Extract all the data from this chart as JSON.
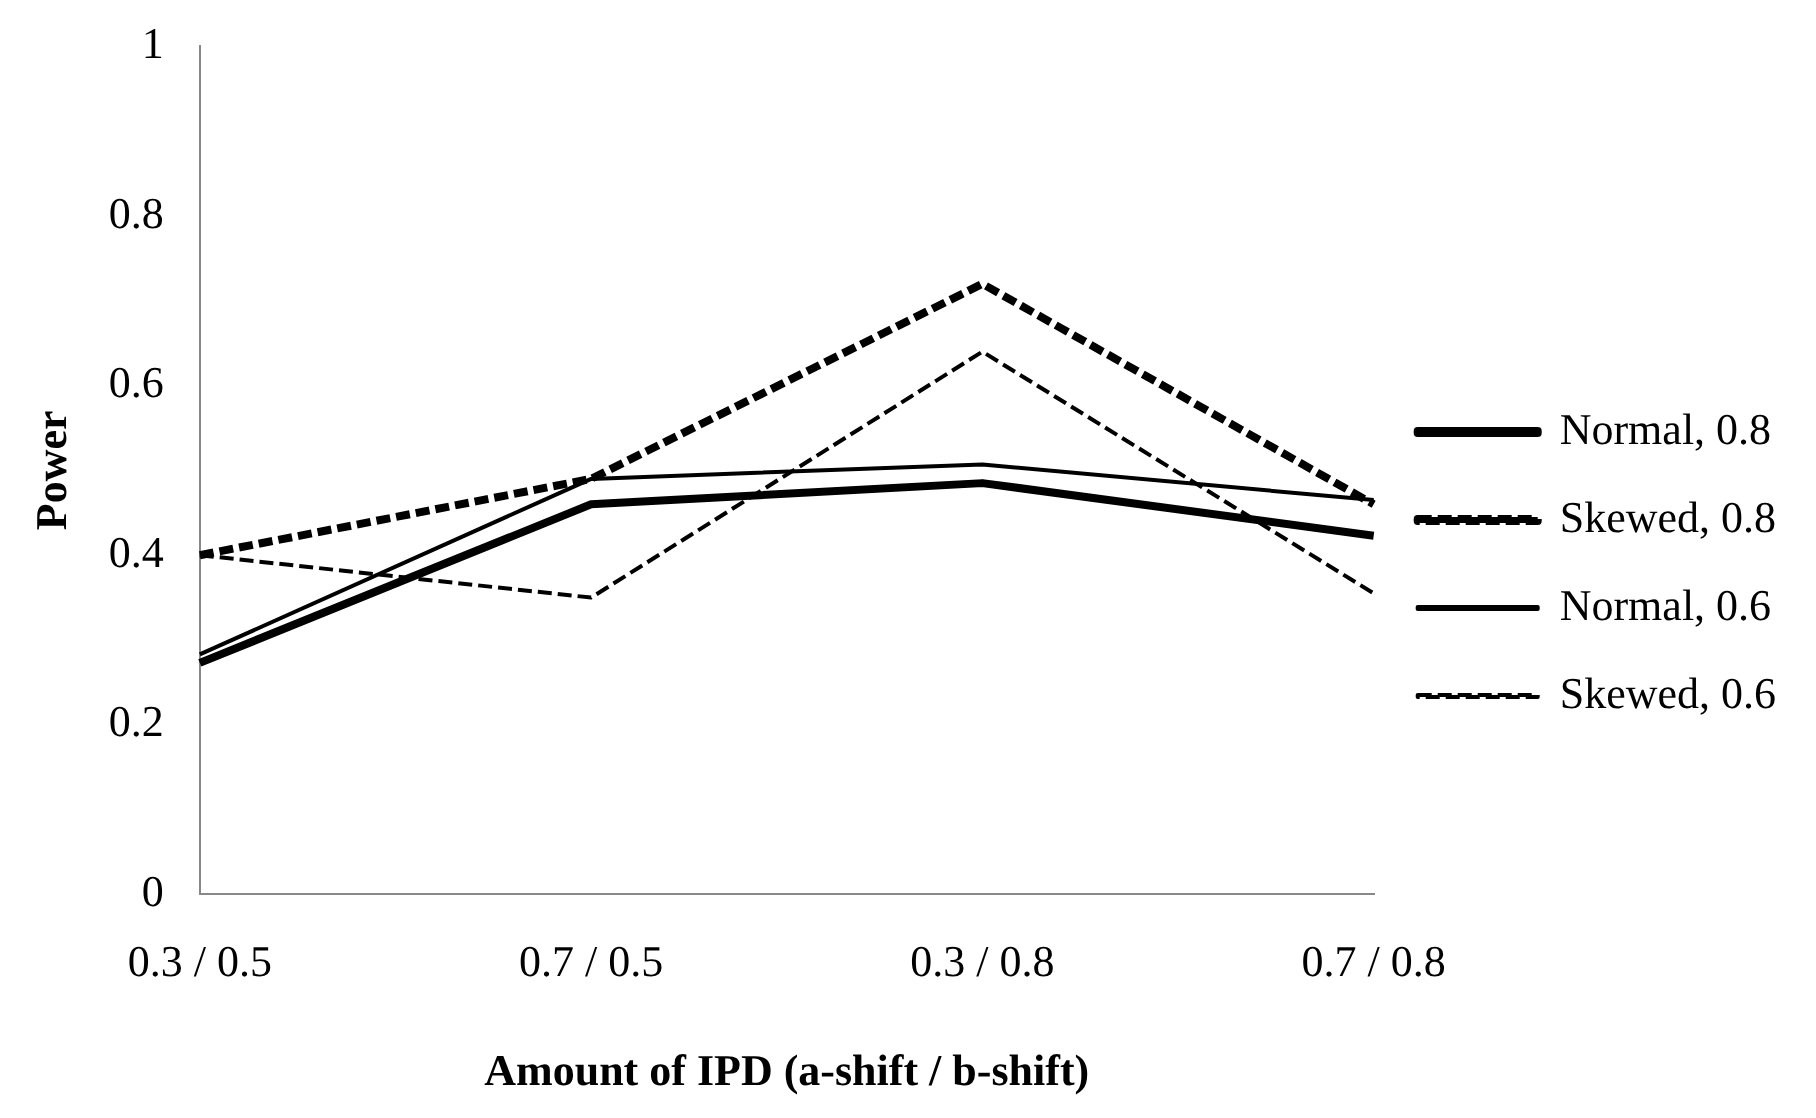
{
  "chart_data": {
    "type": "line",
    "xlabel": "Amount of IPD (a-shift / b-shift)",
    "ylabel": "Power",
    "categories": [
      "0.3 / 0.5",
      "0.7 / 0.5",
      "0.3 / 0.8",
      "0.7 / 0.8"
    ],
    "series": [
      {
        "name": "Normal, 0.8",
        "color": "#000000",
        "line_style": "solid",
        "values": [
          0.273,
          0.46,
          0.485,
          0.423
        ]
      },
      {
        "name": "Skewed, 0.8",
        "color": "#000000",
        "line_style": "dashed",
        "values": [
          0.4,
          0.49,
          0.72,
          0.46
        ]
      },
      {
        "name": "Normal, 0.6",
        "color": "#000000",
        "line_style": "solid",
        "values": [
          0.283,
          0.49,
          0.507,
          0.465
        ]
      },
      {
        "name": "Skewed, 0.6",
        "color": "#000000",
        "line_style": "dashed",
        "values": [
          0.4,
          0.35,
          0.64,
          0.355
        ]
      }
    ],
    "ylim": [
      0,
      1
    ],
    "yticks": [
      0,
      0.2,
      0.4,
      0.6,
      0.8,
      1
    ],
    "grid": false,
    "legend": "right",
    "marker": "none"
  }
}
